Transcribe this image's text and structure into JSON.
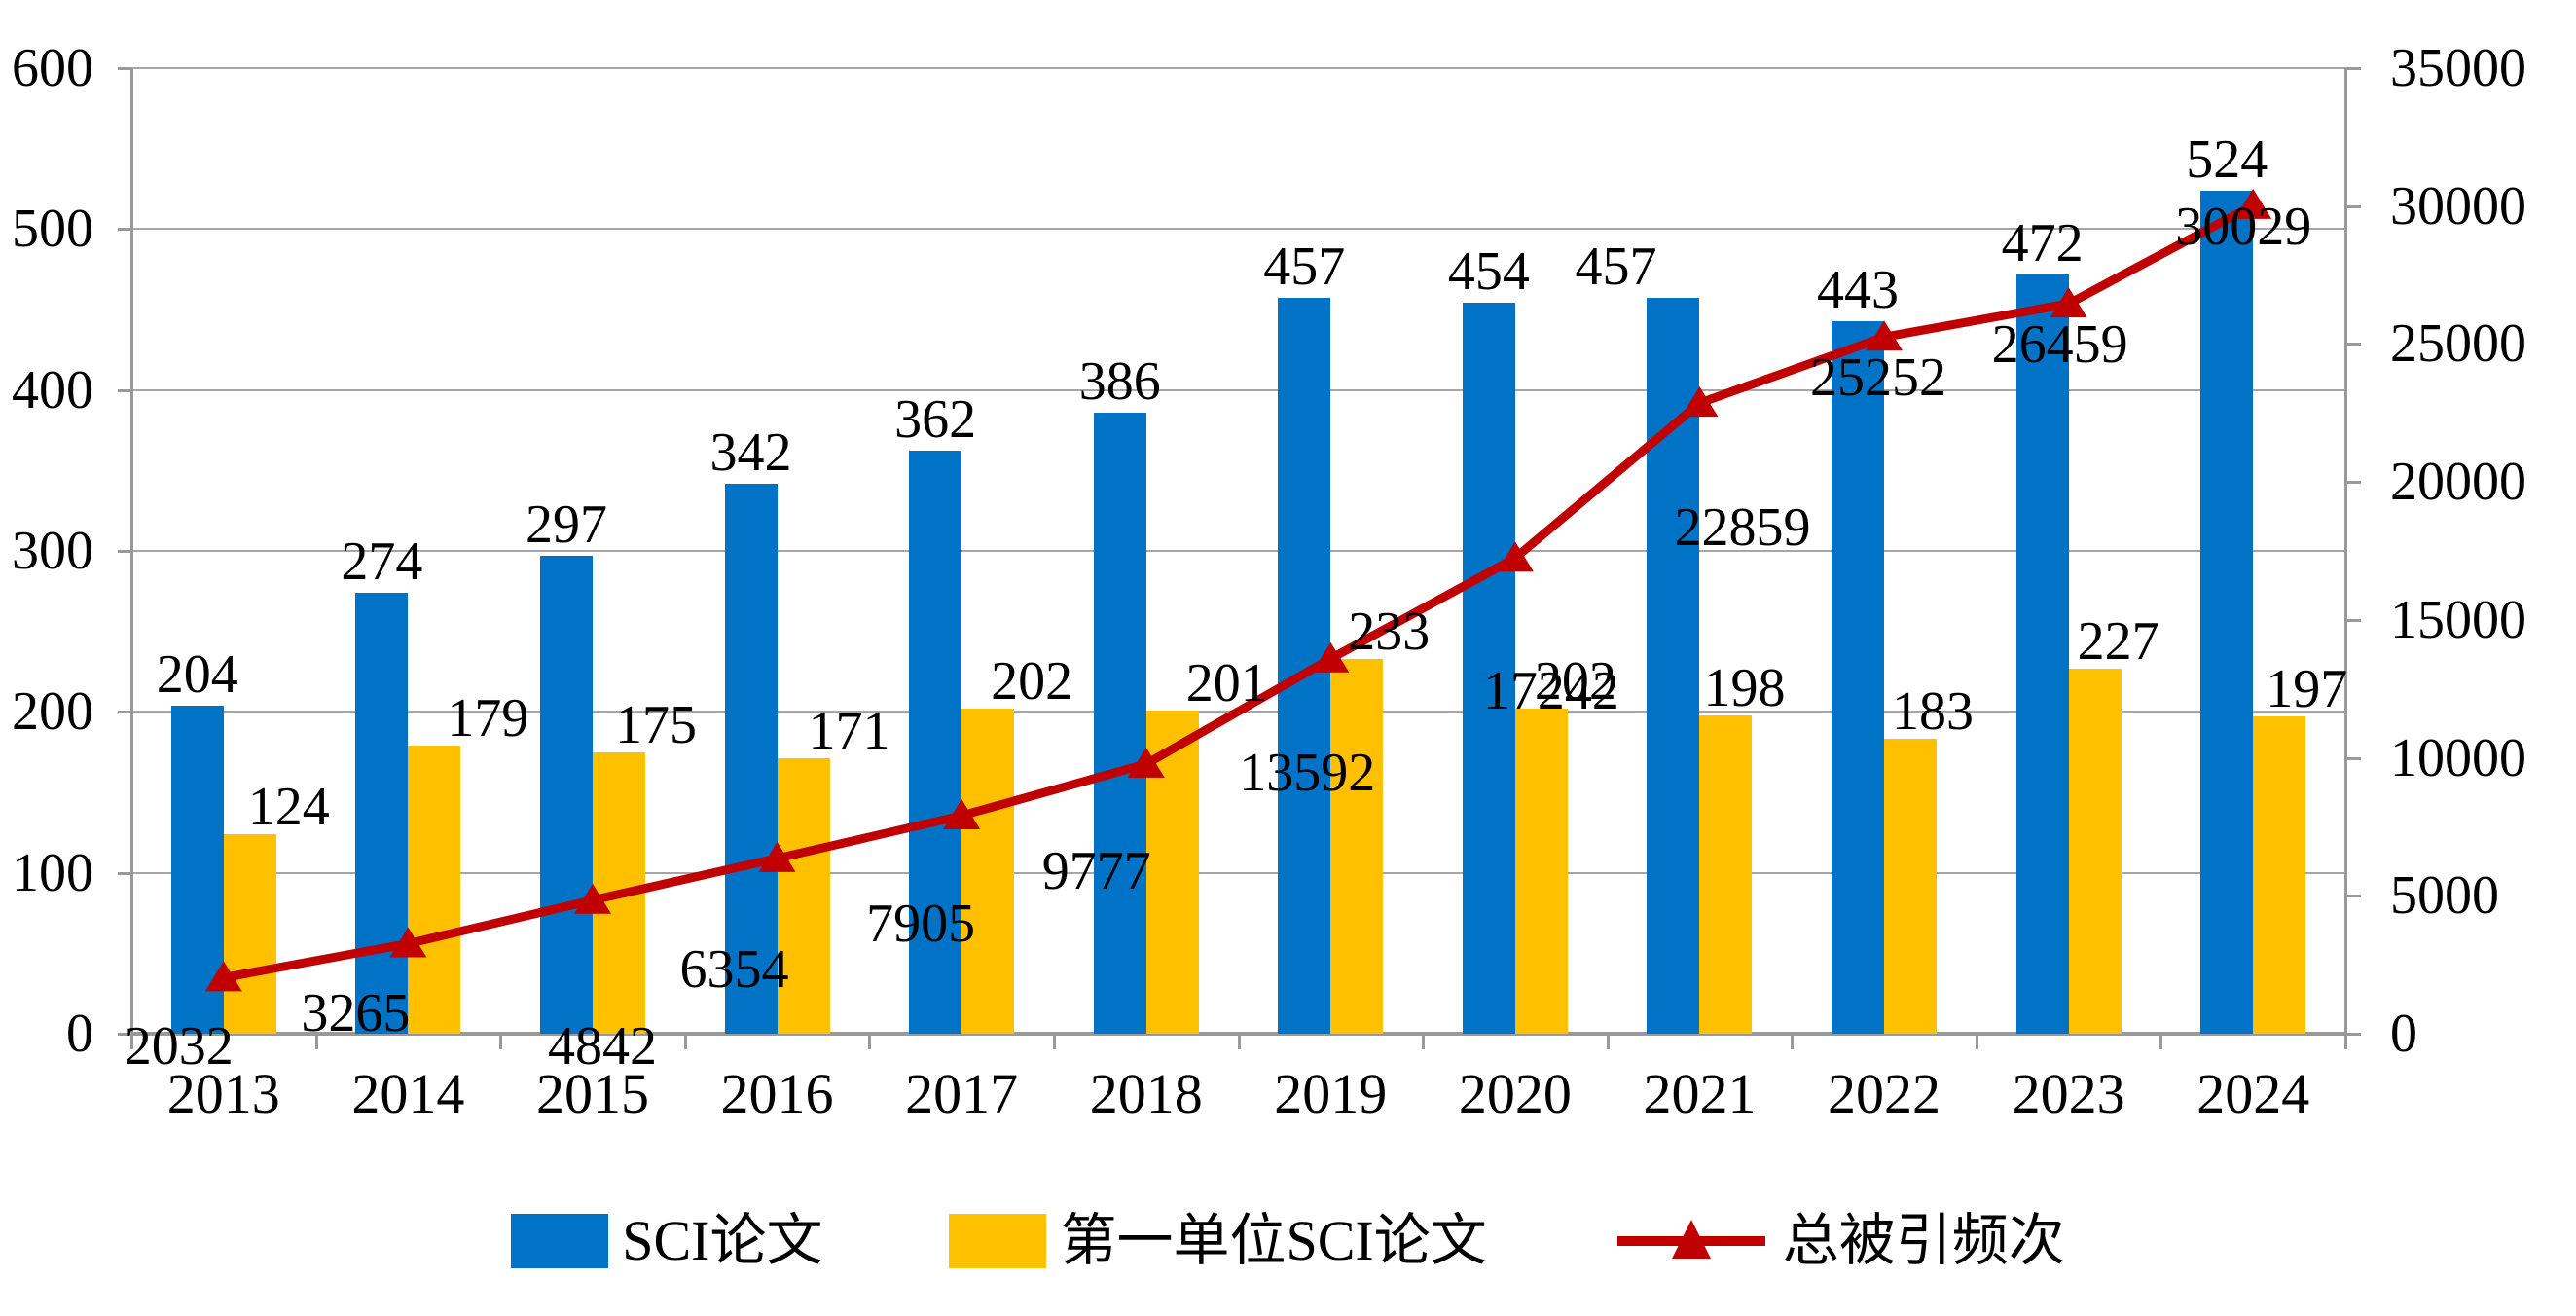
{
  "chart_data": {
    "type": "combo_bar_line",
    "categories": [
      "2013",
      "2014",
      "2015",
      "2016",
      "2017",
      "2018",
      "2019",
      "2020",
      "2021",
      "2022",
      "2023",
      "2024"
    ],
    "series": [
      {
        "name": "SCI论文",
        "type": "bar",
        "axis": "left",
        "color": "#0173C7",
        "values": [
          204,
          274,
          297,
          342,
          362,
          386,
          457,
          454,
          457,
          443,
          472,
          524
        ]
      },
      {
        "name": "第一单位SCI论文",
        "type": "bar",
        "axis": "left",
        "color": "#FFC000",
        "values": [
          124,
          179,
          175,
          171,
          202,
          201,
          233,
          202,
          198,
          183,
          227,
          197
        ]
      },
      {
        "name": "总被引频次",
        "type": "line",
        "axis": "right",
        "color": "#C00000",
        "marker": "triangle",
        "values": [
          2032,
          3265,
          4842,
          6354,
          7905,
          9777,
          13592,
          17242,
          22859,
          25252,
          26459,
          30029
        ]
      }
    ],
    "left_axis": {
      "min": 0,
      "max": 600,
      "step": 100,
      "tick_labels": [
        "0",
        "100",
        "200",
        "300",
        "400",
        "500",
        "600"
      ]
    },
    "right_axis": {
      "min": 0,
      "max": 35000,
      "step": 5000,
      "tick_labels": [
        "0",
        "5000",
        "10000",
        "15000",
        "20000",
        "25000",
        "30000",
        "35000"
      ]
    },
    "grid": true,
    "data_labels": true,
    "legend_position": "bottom",
    "title": "",
    "colors": {
      "gridline": "#a6a6a6",
      "axis": "#9a9a9a",
      "text": "#000000",
      "background": "#ffffff"
    }
  }
}
